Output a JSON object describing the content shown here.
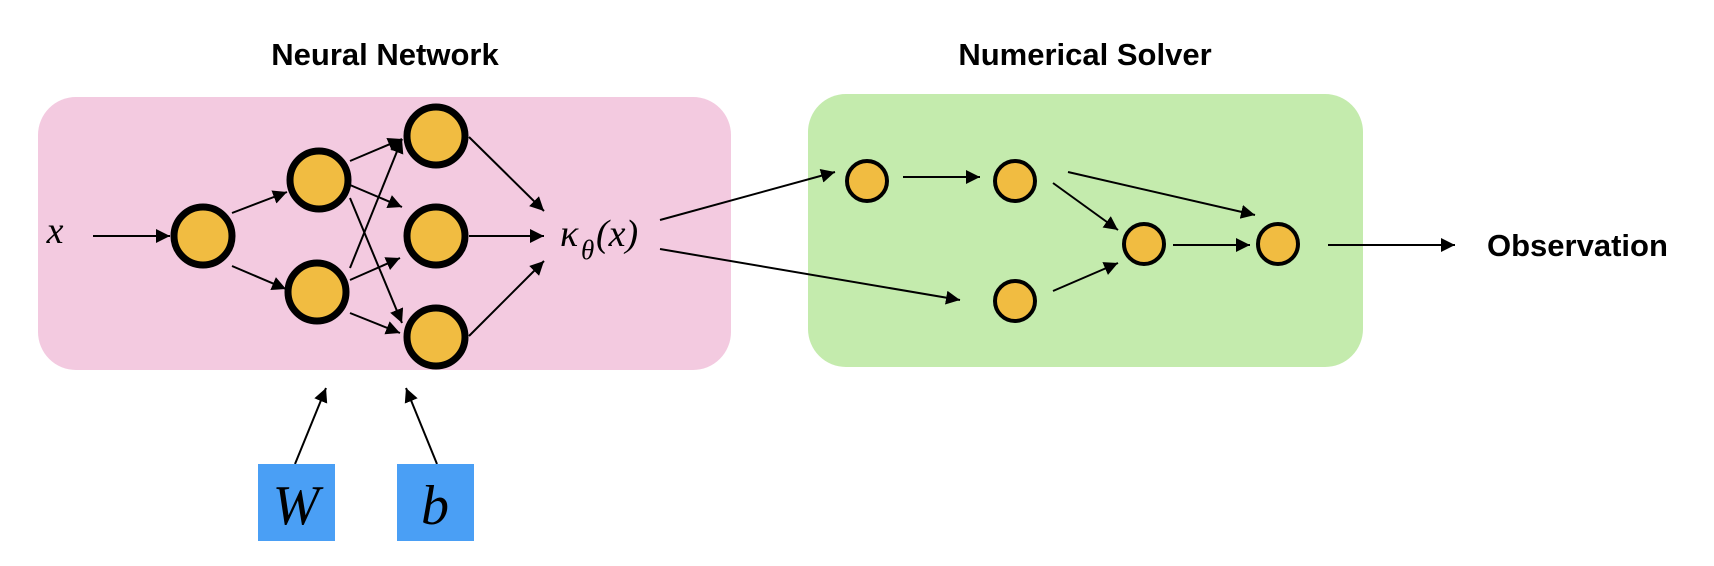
{
  "neural_network": {
    "title": "Neural Network",
    "input_label": "x",
    "output_label": {
      "kappa": "κ",
      "subscript": "θ",
      "argument": "(x)"
    },
    "weights_label": "W",
    "bias_label": "b",
    "background_color": "#F3CAE0",
    "param_box_color": "#4A9FF5"
  },
  "numerical_solver": {
    "title": "Numerical Solver",
    "background_color": "#C4EBAD"
  },
  "output": {
    "label": "Observation"
  },
  "node_color": "#F1BC41"
}
